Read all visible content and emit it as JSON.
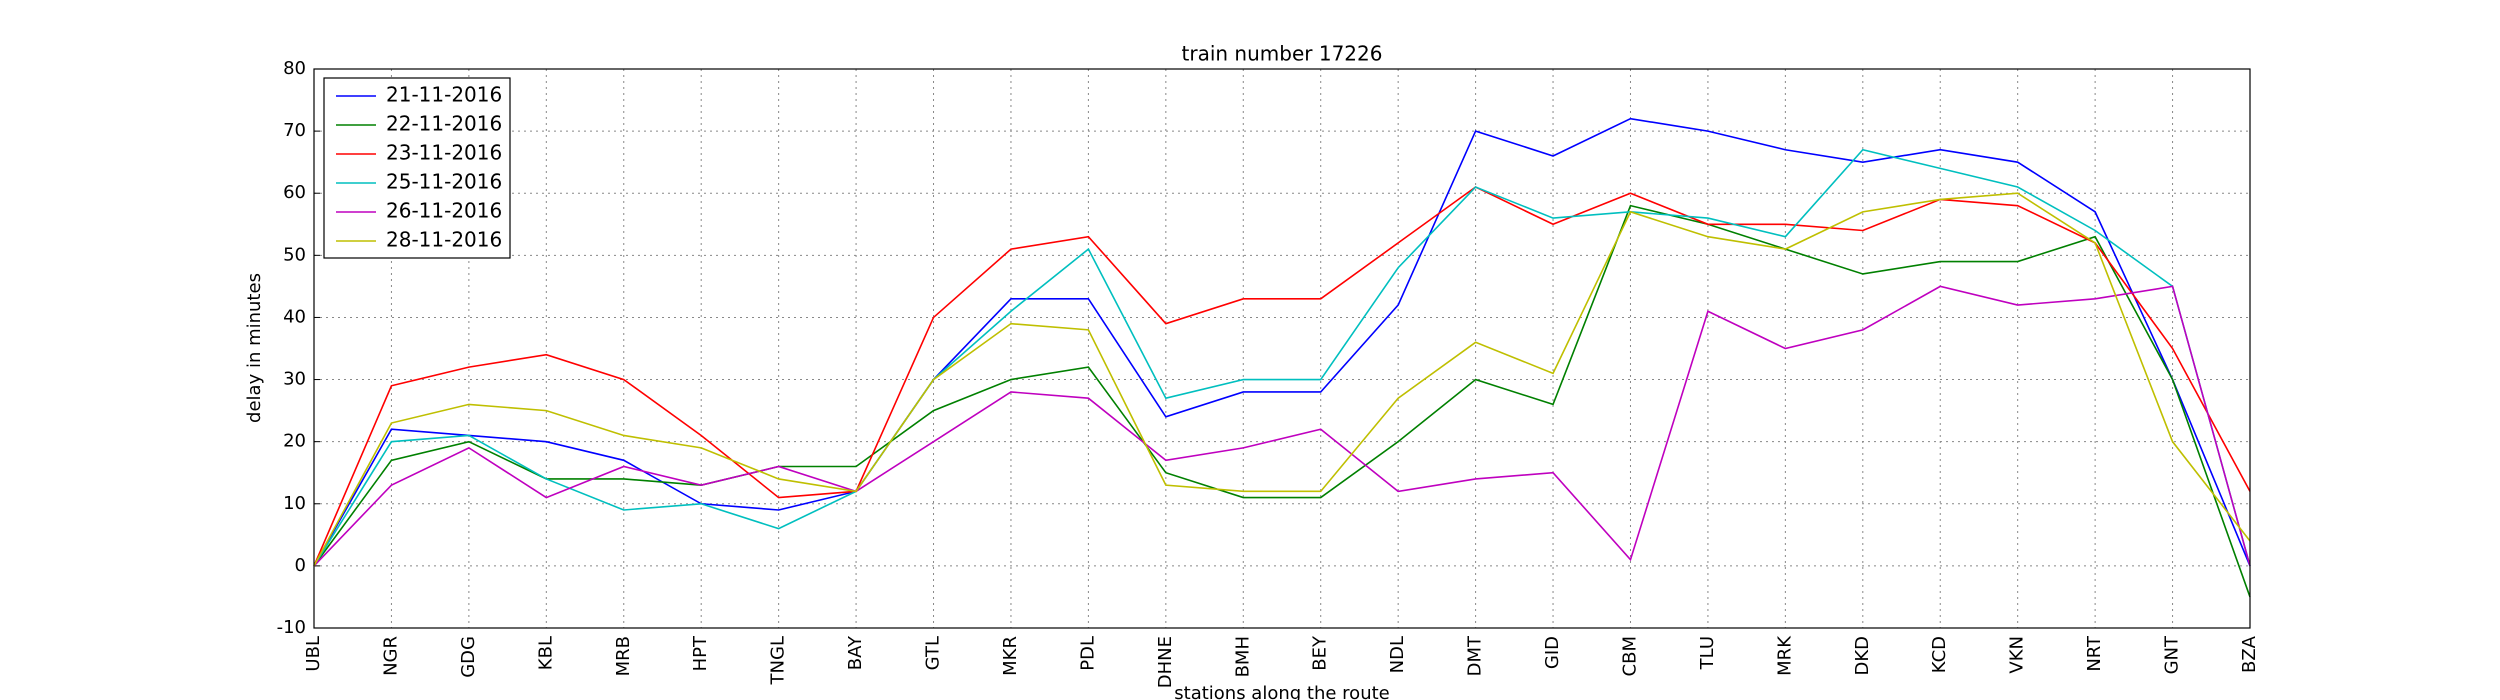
{
  "chart_data": {
    "type": "line",
    "title": "train number 17226",
    "x_label": "stations along the route",
    "y_label": "delay in minutes",
    "categories": [
      "UBL",
      "NGR",
      "GDG",
      "KBL",
      "MRB",
      "HPT",
      "TNGL",
      "BAY",
      "GTL",
      "MKR",
      "PDL",
      "DHNE",
      "BMH",
      "BEY",
      "NDL",
      "DMT",
      "GID",
      "CBM",
      "TLU",
      "MRK",
      "DKD",
      "KCD",
      "VKN",
      "NRT",
      "GNT",
      "BZA"
    ],
    "series": [
      {
        "name": "21-11-2016",
        "color": "#0000ff",
        "values": [
          0,
          22,
          21,
          20,
          17,
          10,
          9,
          12,
          30,
          43,
          43,
          24,
          28,
          28,
          42,
          70,
          66,
          72,
          70,
          67,
          65,
          67,
          65,
          57,
          30,
          0
        ]
      },
      {
        "name": "22-11-2016",
        "color": "#008000",
        "values": [
          0,
          17,
          20,
          14,
          14,
          13,
          16,
          16,
          25,
          30,
          32,
          15,
          11,
          11,
          20,
          30,
          26,
          58,
          55,
          51,
          47,
          49,
          49,
          53,
          30,
          -5
        ]
      },
      {
        "name": "23-11-2016",
        "color": "#ff0000",
        "values": [
          0,
          29,
          32,
          34,
          30,
          21,
          11,
          12,
          40,
          51,
          53,
          39,
          43,
          43,
          52,
          61,
          55,
          60,
          55,
          55,
          54,
          59,
          58,
          52,
          35,
          12
        ]
      },
      {
        "name": "25-11-2016",
        "color": "#00bfbf",
        "values": [
          0,
          20,
          21,
          14,
          9,
          10,
          6,
          12,
          30,
          41,
          51,
          27,
          30,
          30,
          48,
          61,
          56,
          57,
          56,
          53,
          67,
          64,
          61,
          54,
          45,
          0
        ]
      },
      {
        "name": "26-11-2016",
        "color": "#bf00bf",
        "values": [
          0,
          13,
          19,
          11,
          16,
          13,
          16,
          12,
          20,
          28,
          27,
          17,
          19,
          22,
          12,
          14,
          15,
          1,
          41,
          35,
          38,
          45,
          42,
          43,
          45,
          0
        ]
      },
      {
        "name": "28-11-2016",
        "color": "#bfbf00",
        "values": [
          0,
          23,
          26,
          25,
          21,
          19,
          14,
          12,
          30,
          39,
          38,
          13,
          12,
          12,
          27,
          36,
          31,
          57,
          53,
          51,
          57,
          59,
          60,
          52,
          20,
          4
        ]
      }
    ],
    "ylim": [
      -10,
      80
    ],
    "yticks": [
      -10,
      0,
      10,
      20,
      30,
      40,
      50,
      60,
      70,
      80
    ],
    "grid": true,
    "legend": "upper left"
  }
}
